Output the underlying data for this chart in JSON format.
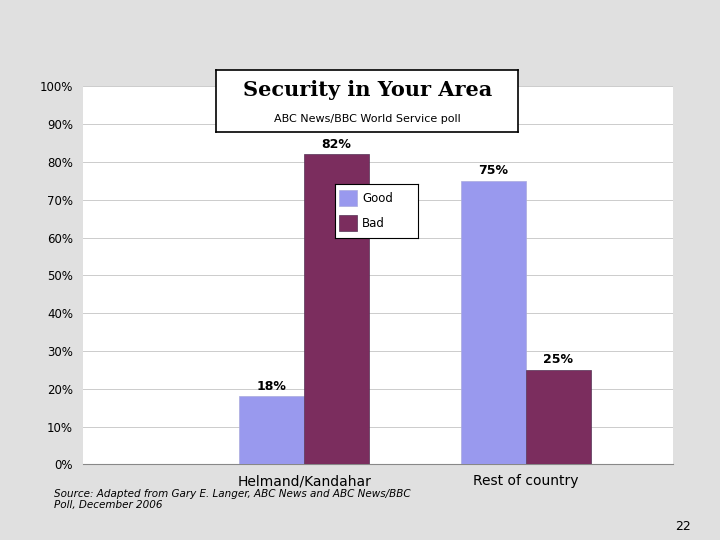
{
  "title": "Security in Your Area",
  "subtitle": "ABC News/BBC World Service poll",
  "categories": [
    "Helmand/Kandahar",
    "Rest of country"
  ],
  "good_values": [
    18,
    75
  ],
  "bad_values": [
    82,
    25
  ],
  "good_labels": [
    "18%",
    "75%"
  ],
  "bad_labels": [
    "82%",
    "25%"
  ],
  "good_color": "#9999ee",
  "bad_color": "#7b2d5e",
  "ylim": [
    0,
    100
  ],
  "yticks": [
    0,
    10,
    20,
    30,
    40,
    50,
    60,
    70,
    80,
    90,
    100
  ],
  "ytick_labels": [
    "0%",
    "10%",
    "20%",
    "30%",
    "40%",
    "50%",
    "60%",
    "70%",
    "80%",
    "90%",
    "100%"
  ],
  "legend_labels": [
    "Good",
    "Bad"
  ],
  "source_text": "Source: Adapted from Gary E. Langer, ABC News and ABC News/BBC\nPoll, December 2006",
  "background_color": "#e0e0e0",
  "plot_bg_color": "#ffffff",
  "page_number": "22",
  "bar_width": 0.22,
  "xlim": [
    -0.5,
    1.5
  ],
  "x_positions": [
    0.25,
    1.0
  ]
}
